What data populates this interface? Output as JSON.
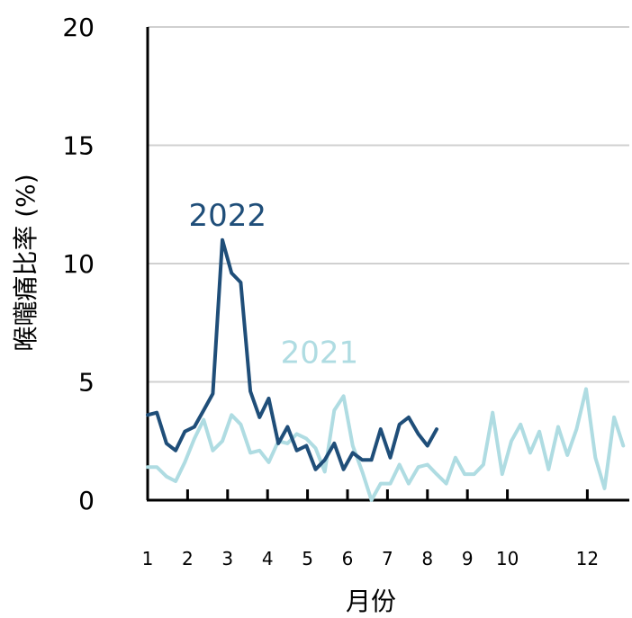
{
  "chart_data": {
    "type": "line",
    "xlabel": "月份",
    "ylabel": "喉嚨痛比率 (%)",
    "ylim": [
      0,
      20
    ],
    "yticks": [
      "0",
      "5",
      "10",
      "15",
      "20"
    ],
    "xlim": [
      1,
      13.05
    ],
    "xticks": [
      {
        "value": 1,
        "label": "1"
      },
      {
        "value": 2,
        "label": "2"
      },
      {
        "value": 3,
        "label": "3"
      },
      {
        "value": 4,
        "label": "4"
      },
      {
        "value": 5,
        "label": "5"
      },
      {
        "value": 6,
        "label": "6"
      },
      {
        "value": 7,
        "label": "7"
      },
      {
        "value": 8,
        "label": "8"
      },
      {
        "value": 9,
        "label": "9"
      },
      {
        "value": 10,
        "label": "10"
      },
      {
        "value": 12,
        "label": "12"
      }
    ],
    "grid": "horizontal",
    "series": [
      {
        "name": "2021",
        "color": "#afdce2",
        "label_position": [
          5.3,
          5.8
        ],
        "x": [
          1.0,
          1.23,
          1.47,
          1.7,
          1.93,
          2.17,
          2.4,
          2.63,
          2.87,
          3.1,
          3.33,
          3.57,
          3.8,
          4.03,
          4.27,
          4.5,
          4.73,
          4.97,
          5.2,
          5.43,
          5.67,
          5.9,
          6.13,
          6.37,
          6.6,
          6.83,
          7.07,
          7.3,
          7.53,
          7.77,
          8.0,
          8.23,
          8.47,
          8.7,
          8.93,
          9.17,
          9.4,
          9.63,
          9.87,
          10.1,
          10.33,
          10.57,
          10.8,
          11.03,
          11.27,
          11.5,
          11.73,
          11.97,
          12.2,
          12.43,
          12.67,
          12.9
        ],
        "y": [
          1.4,
          1.4,
          1.0,
          0.8,
          1.6,
          2.6,
          3.4,
          2.1,
          2.5,
          3.6,
          3.2,
          2.0,
          2.1,
          1.6,
          2.5,
          2.4,
          2.8,
          2.6,
          2.2,
          1.2,
          3.8,
          4.4,
          2.3,
          1.2,
          0.0,
          0.7,
          0.7,
          1.5,
          0.7,
          1.4,
          1.5,
          1.1,
          0.7,
          1.8,
          1.1,
          1.1,
          1.5,
          3.7,
          1.1,
          2.5,
          3.2,
          2.0,
          2.9,
          1.3,
          3.1,
          1.9,
          3.0,
          4.7,
          1.8,
          0.5,
          3.5,
          2.3
        ]
      },
      {
        "name": "2022",
        "color": "#1f4e79",
        "label_position": [
          3.0,
          11.6
        ],
        "x": [
          1.0,
          1.23,
          1.47,
          1.7,
          1.93,
          2.17,
          2.4,
          2.63,
          2.87,
          3.1,
          3.33,
          3.57,
          3.8,
          4.03,
          4.27,
          4.5,
          4.73,
          4.97,
          5.2,
          5.43,
          5.67,
          5.9,
          6.13,
          6.37,
          6.6,
          6.83,
          7.07,
          7.3,
          7.53,
          7.77,
          8.0,
          8.23
        ],
        "y": [
          3.6,
          3.7,
          2.4,
          2.1,
          2.9,
          3.1,
          3.8,
          4.5,
          11.0,
          9.6,
          9.2,
          4.6,
          3.5,
          4.3,
          2.4,
          3.1,
          2.1,
          2.3,
          1.3,
          1.7,
          2.4,
          1.3,
          2.0,
          1.7,
          1.7,
          3.0,
          1.8,
          3.2,
          3.5,
          2.8,
          2.3,
          3.0
        ]
      }
    ]
  }
}
